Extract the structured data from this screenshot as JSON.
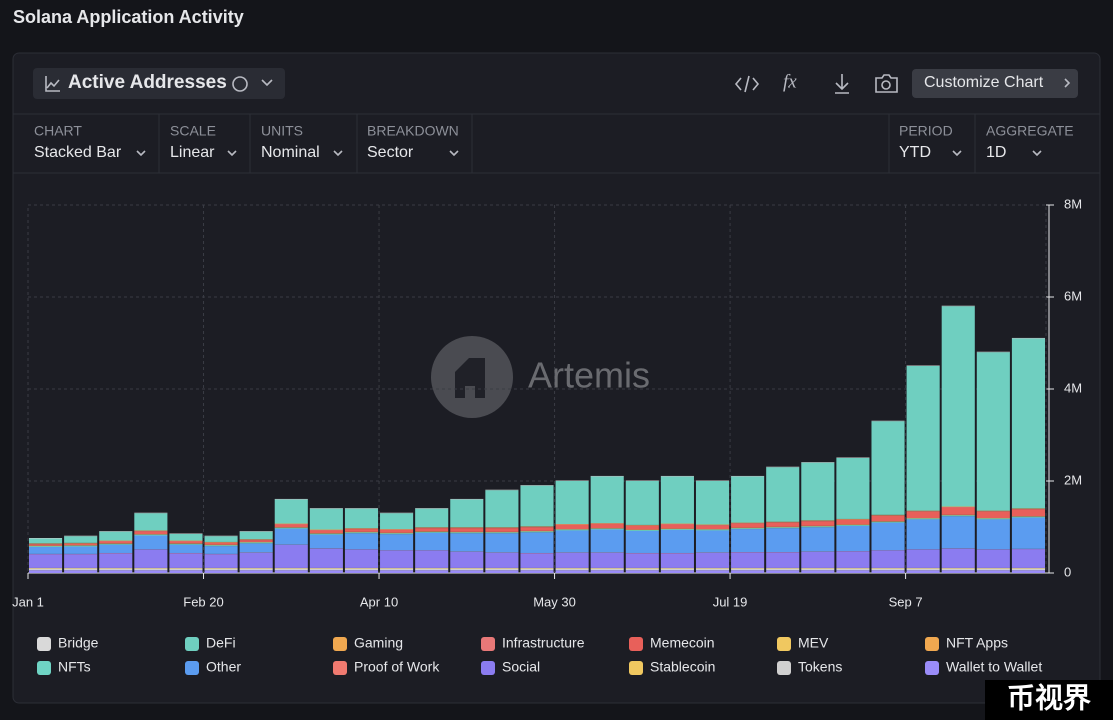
{
  "header": {
    "title": "Solana Application Activity"
  },
  "toolbar": {
    "metric": "Active Addresses",
    "button": "Customize Chart"
  },
  "controls": [
    {
      "label": "CHART",
      "value": "Stacked Bar"
    },
    {
      "label": "SCALE",
      "value": "Linear"
    },
    {
      "label": "UNITS",
      "value": "Nominal"
    },
    {
      "label": "BREAKDOWN",
      "value": "Sector"
    },
    {
      "label": "PERIOD",
      "value": "YTD"
    },
    {
      "label": "AGGREGATE",
      "value": "1D"
    }
  ],
  "watermark": "Artemis",
  "corner": "币视界",
  "chart_data": {
    "type": "stacked_bar",
    "categories": [
      "Jan 1",
      null,
      null,
      null,
      null,
      "Feb 20",
      null,
      null,
      null,
      null,
      "Apr 10",
      null,
      null,
      null,
      null,
      "May 30",
      null,
      null,
      null,
      null,
      "Jul 19",
      null,
      null,
      null,
      null,
      "Sep 7",
      null,
      null,
      null
    ],
    "ylim": [
      0,
      8000000
    ],
    "yticks": [
      0,
      {
        "value": 2000000,
        "label": "2M"
      },
      {
        "value": 4000000,
        "label": "4M"
      },
      {
        "value": 6000000,
        "label": "6M"
      },
      {
        "value": 8000000,
        "label": "8M"
      }
    ],
    "grid": true,
    "series": [
      {
        "name": "Bridge",
        "color": "#d9d9d9",
        "values": [
          10000,
          10000,
          10000,
          10000,
          10000,
          10000,
          10000,
          10000,
          10000,
          10000,
          10000,
          10000,
          10000,
          10000,
          10000,
          10000,
          10000,
          10000,
          10000,
          10000,
          10000,
          10000,
          10000,
          10000,
          10000,
          10000,
          10000,
          10000,
          10000
        ]
      },
      {
        "name": "DeFi",
        "color": "#6fcfc0",
        "values": [
          105000,
          145000,
          195000,
          375000,
          145000,
          125000,
          165000,
          525000,
          455000,
          425000,
          345000,
          405000,
          605000,
          805000,
          885000,
          935000,
          1015000,
          955000,
          1025000,
          945000,
          1005000,
          1185000,
          1255000,
          1325000,
          2035000,
          3145000,
          4355000,
          3445000,
          3695000
        ]
      },
      {
        "name": "Gaming",
        "color": "#f0a850",
        "values": [
          10000,
          10000,
          10000,
          10000,
          10000,
          10000,
          10000,
          10000,
          10000,
          10000,
          10000,
          10000,
          10000,
          10000,
          10000,
          10000,
          10000,
          10000,
          10000,
          10000,
          10000,
          10000,
          10000,
          10000,
          10000,
          10000,
          10000,
          10000,
          10000
        ]
      },
      {
        "name": "Infrastructure",
        "color": "#e87878",
        "values": [
          10000,
          10000,
          10000,
          10000,
          10000,
          10000,
          10000,
          10000,
          10000,
          10000,
          10000,
          10000,
          10000,
          10000,
          10000,
          10000,
          10000,
          10000,
          10000,
          10000,
          10000,
          10000,
          10000,
          10000,
          10000,
          10000,
          10000,
          10000,
          10000
        ]
      },
      {
        "name": "Memecoin",
        "color": "#e8605a",
        "values": [
          30000,
          30000,
          40000,
          60000,
          40000,
          40000,
          40000,
          60000,
          60000,
          60000,
          60000,
          70000,
          80000,
          80000,
          80000,
          90000,
          90000,
          80000,
          90000,
          80000,
          90000,
          90000,
          100000,
          100000,
          120000,
          140000,
          160000,
          140000,
          150000
        ]
      },
      {
        "name": "MEV",
        "color": "#f0c860",
        "values": [
          5000,
          5000,
          5000,
          5000,
          5000,
          5000,
          5000,
          5000,
          5000,
          5000,
          5000,
          5000,
          5000,
          5000,
          5000,
          5000,
          5000,
          5000,
          5000,
          5000,
          5000,
          5000,
          5000,
          5000,
          5000,
          5000,
          5000,
          5000,
          5000
        ]
      },
      {
        "name": "NFT Apps",
        "color": "#f0a850",
        "values": [
          5000,
          5000,
          5000,
          5000,
          5000,
          5000,
          5000,
          5000,
          5000,
          5000,
          5000,
          5000,
          5000,
          5000,
          5000,
          5000,
          5000,
          5000,
          5000,
          5000,
          5000,
          5000,
          5000,
          5000,
          5000,
          5000,
          5000,
          5000,
          5000
        ]
      },
      {
        "name": "NFTs",
        "color": "#6fd4c4",
        "values": [
          20000,
          20000,
          20000,
          20000,
          20000,
          20000,
          20000,
          20000,
          20000,
          20000,
          20000,
          20000,
          20000,
          20000,
          20000,
          20000,
          20000,
          20000,
          20000,
          20000,
          20000,
          20000,
          20000,
          20000,
          20000,
          20000,
          20000,
          20000,
          20000
        ]
      },
      {
        "name": "Other",
        "color": "#5b9cf0",
        "values": [
          150000,
          160000,
          180000,
          300000,
          180000,
          170000,
          200000,
          350000,
          300000,
          350000,
          350000,
          380000,
          400000,
          420000,
          450000,
          480000,
          500000,
          480000,
          500000,
          480000,
          500000,
          520000,
          530000,
          550000,
          600000,
          650000,
          700000,
          650000,
          680000
        ]
      },
      {
        "name": "Proof of Work",
        "color": "#f07a70",
        "values": [
          5000,
          5000,
          5000,
          5000,
          5000,
          5000,
          5000,
          5000,
          5000,
          5000,
          5000,
          5000,
          5000,
          5000,
          5000,
          5000,
          5000,
          5000,
          5000,
          5000,
          5000,
          5000,
          5000,
          5000,
          5000,
          5000,
          5000,
          5000,
          5000
        ]
      },
      {
        "name": "Social",
        "color": "#8b7cf0",
        "values": [
          300000,
          300000,
          320000,
          400000,
          320000,
          300000,
          330000,
          500000,
          420000,
          400000,
          380000,
          380000,
          350000,
          330000,
          320000,
          330000,
          330000,
          320000,
          320000,
          330000,
          340000,
          340000,
          350000,
          360000,
          380000,
          400000,
          420000,
          400000,
          410000
        ]
      },
      {
        "name": "Stablecoin",
        "color": "#f0c860",
        "values": [
          10000,
          10000,
          10000,
          10000,
          10000,
          10000,
          10000,
          10000,
          10000,
          10000,
          10000,
          10000,
          10000,
          10000,
          10000,
          10000,
          10000,
          10000,
          10000,
          10000,
          10000,
          10000,
          10000,
          10000,
          10000,
          10000,
          10000,
          10000,
          10000
        ]
      },
      {
        "name": "Tokens",
        "color": "#d0d0d0",
        "values": [
          40000,
          40000,
          40000,
          40000,
          40000,
          40000,
          40000,
          40000,
          40000,
          40000,
          40000,
          40000,
          40000,
          40000,
          40000,
          40000,
          40000,
          40000,
          40000,
          40000,
          40000,
          40000,
          40000,
          40000,
          40000,
          40000,
          40000,
          40000,
          40000
        ]
      },
      {
        "name": "Wallet to Wallet",
        "color": "#9a8cf8",
        "values": [
          60000,
          60000,
          60000,
          60000,
          60000,
          60000,
          60000,
          60000,
          60000,
          60000,
          60000,
          60000,
          60000,
          60000,
          60000,
          60000,
          60000,
          60000,
          60000,
          60000,
          60000,
          60000,
          60000,
          60000,
          60000,
          60000,
          60000,
          60000,
          60000
        ]
      }
    ]
  }
}
